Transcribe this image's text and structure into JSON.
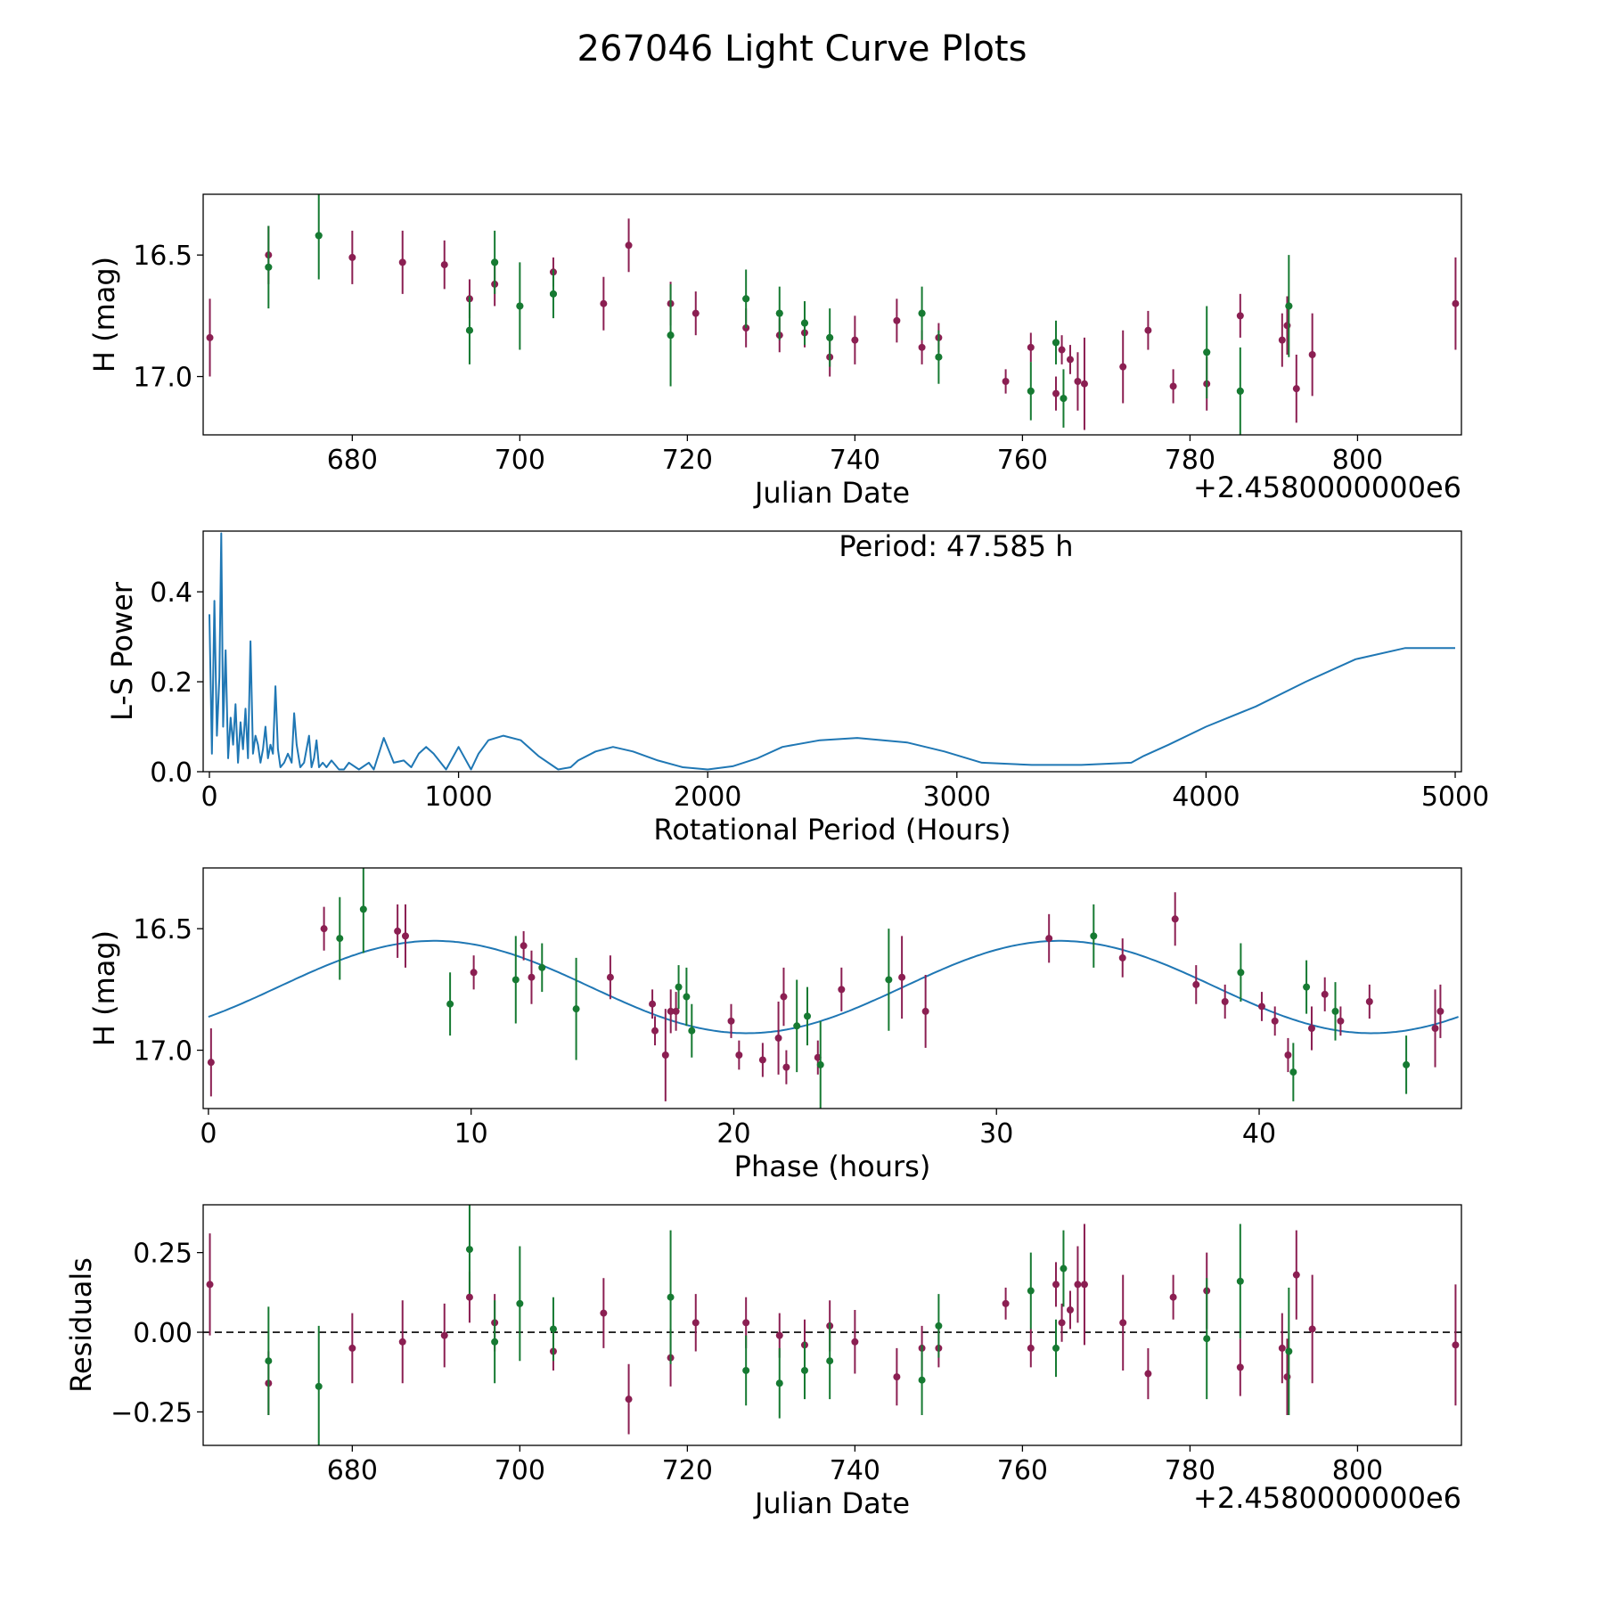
{
  "figure_title": "267046 Light Curve Plots",
  "colors": {
    "purple": "#8b1f52",
    "green": "#167a32",
    "blue": "#1f77b4",
    "black": "#000000"
  },
  "chart_data": [
    {
      "id": "lightcurve",
      "type": "scatter",
      "xlabel": "Julian Date",
      "ylabel": "H (mag)",
      "offset_label": "+2.4580000000e6",
      "xlim": [
        662.2,
        812.4
      ],
      "ylim": [
        17.24,
        16.25
      ],
      "xticks": [
        680,
        700,
        720,
        740,
        760,
        780,
        800
      ],
      "yticks": [
        17.0,
        16.5
      ],
      "ytick_labels": [
        "17.0",
        "16.5"
      ],
      "series": [
        {
          "name": "purple band",
          "color": "#8b1f52",
          "x": [
            663,
            670,
            680,
            686,
            691,
            694,
            697,
            704,
            710,
            713,
            718,
            721,
            727,
            731,
            734,
            737,
            740,
            745,
            748,
            750,
            758,
            761,
            764,
            764.7,
            765.7,
            766.6,
            767.4,
            772,
            775,
            778,
            782,
            786,
            791,
            791.6,
            792.7,
            794.6,
            811.7
          ],
          "y": [
            16.84,
            16.5,
            16.51,
            16.53,
            16.54,
            16.68,
            16.62,
            16.57,
            16.7,
            16.46,
            16.7,
            16.74,
            16.8,
            16.83,
            16.82,
            16.92,
            16.85,
            16.77,
            16.88,
            16.84,
            17.02,
            16.88,
            17.07,
            16.89,
            16.93,
            17.02,
            17.03,
            16.96,
            16.81,
            17.04,
            17.03,
            16.75,
            16.85,
            16.79,
            17.05,
            16.91,
            16.7
          ],
          "err": [
            0.16,
            0.12,
            0.11,
            0.13,
            0.1,
            0.08,
            0.09,
            0.06,
            0.11,
            0.11,
            0.09,
            0.09,
            0.08,
            0.07,
            0.06,
            0.08,
            0.1,
            0.09,
            0.07,
            0.06,
            0.05,
            0.06,
            0.07,
            0.06,
            0.06,
            0.12,
            0.19,
            0.15,
            0.08,
            0.07,
            0.11,
            0.09,
            0.11,
            0.12,
            0.14,
            0.17,
            0.19
          ]
        },
        {
          "name": "green band",
          "color": "#167a32",
          "x": [
            670,
            676,
            694,
            697,
            700,
            704,
            718,
            727,
            731,
            734,
            737,
            748,
            750,
            761,
            764,
            764.9,
            782,
            786,
            791.8
          ],
          "y": [
            16.55,
            16.42,
            16.81,
            16.53,
            16.71,
            16.66,
            16.83,
            16.68,
            16.74,
            16.78,
            16.84,
            16.74,
            16.92,
            17.06,
            16.86,
            17.09,
            16.9,
            17.06,
            16.71
          ]
        },
        {
          "name": "green band errors",
          "err": [
            0.17,
            0.18,
            0.14,
            0.13,
            0.18,
            0.1,
            0.21,
            0.12,
            0.11,
            0.09,
            0.12,
            0.11,
            0.11,
            0.12,
            0.09,
            0.12,
            0.19,
            0.18,
            0.21
          ]
        }
      ]
    },
    {
      "id": "periodogram",
      "type": "line",
      "xlabel": "Rotational Period (Hours)",
      "ylabel": "L-S Power",
      "annotation": "Period: 47.585 h",
      "xlim": [
        -25,
        5025
      ],
      "ylim": [
        0,
        0.535
      ],
      "xticks": [
        0,
        1000,
        2000,
        3000,
        4000,
        5000
      ],
      "yticks": [
        0.0,
        0.2,
        0.4
      ],
      "ytick_labels": [
        "0.0",
        "0.2",
        "0.4"
      ],
      "color": "#1f77b4",
      "x": [
        0,
        10,
        20,
        30,
        40,
        47.6,
        55,
        65,
        75,
        85,
        95,
        105,
        115,
        125,
        135,
        145,
        155,
        165,
        175,
        185,
        195,
        205,
        215,
        225,
        235,
        245,
        255,
        265,
        275,
        285,
        300,
        315,
        330,
        340,
        350,
        365,
        380,
        400,
        410,
        420,
        430,
        440,
        455,
        470,
        490,
        520,
        540,
        560,
        600,
        640,
        660,
        700,
        740,
        780,
        810,
        840,
        870,
        900,
        950,
        1000,
        1050,
        1080,
        1120,
        1180,
        1250,
        1320,
        1400,
        1450,
        1480,
        1550,
        1620,
        1700,
        1800,
        1900,
        2000,
        2100,
        2200,
        2300,
        2450,
        2600,
        2800,
        2950,
        3100,
        3300,
        3500,
        3700,
        3750,
        3850,
        4000,
        4200,
        4400,
        4600,
        4800,
        5000
      ],
      "y": [
        0.35,
        0.04,
        0.38,
        0.08,
        0.21,
        0.53,
        0.1,
        0.27,
        0.03,
        0.12,
        0.06,
        0.15,
        0.02,
        0.11,
        0.05,
        0.14,
        0.03,
        0.29,
        0.04,
        0.08,
        0.06,
        0.02,
        0.05,
        0.1,
        0.03,
        0.06,
        0.04,
        0.19,
        0.05,
        0.01,
        0.02,
        0.04,
        0.02,
        0.13,
        0.06,
        0.01,
        0.02,
        0.08,
        0.01,
        0.03,
        0.07,
        0.01,
        0.02,
        0.01,
        0.025,
        0.005,
        0.005,
        0.02,
        0.005,
        0.02,
        0.005,
        0.075,
        0.02,
        0.025,
        0.01,
        0.04,
        0.055,
        0.04,
        0.005,
        0.055,
        0.005,
        0.04,
        0.07,
        0.08,
        0.07,
        0.035,
        0.005,
        0.01,
        0.025,
        0.045,
        0.055,
        0.045,
        0.025,
        0.01,
        0.005,
        0.012,
        0.03,
        0.055,
        0.07,
        0.075,
        0.065,
        0.045,
        0.02,
        0.015,
        0.015,
        0.02,
        0.035,
        0.06,
        0.1,
        0.145,
        0.2,
        0.25,
        0.275,
        0.275
      ]
    },
    {
      "id": "phase",
      "type": "scatter",
      "xlabel": "Phase (hours)",
      "ylabel": "H (mag)",
      "xlim": [
        -0.2,
        47.7
      ],
      "ylim": [
        17.24,
        16.25
      ],
      "xticks": [
        0,
        10,
        20,
        30,
        40
      ],
      "yticks": [
        17.0,
        16.5
      ],
      "ytick_labels": [
        "17.0",
        "16.5"
      ],
      "model": {
        "period": 47.585,
        "mean": 16.74,
        "amplitude": 0.19,
        "peak_phase": 20.5
      },
      "series": [
        {
          "name": "purple band",
          "color": "#8b1f52",
          "x": [
            0.1,
            4.4,
            7.2,
            7.5,
            10.1,
            12.0,
            12.3,
            15.3,
            16.9,
            17.0,
            17.4,
            17.6,
            17.8,
            19.9,
            20.2,
            21.1,
            21.7,
            21.9,
            22.0,
            23.2,
            24.1,
            26.4,
            27.3,
            32.0,
            34.8,
            36.8,
            37.6,
            38.7,
            40.1,
            40.6,
            41.1,
            42.0,
            42.5,
            43.1,
            44.2,
            46.7,
            46.9
          ],
          "y": [
            17.05,
            16.5,
            16.51,
            16.53,
            16.68,
            16.57,
            16.7,
            16.7,
            16.81,
            16.92,
            17.02,
            16.84,
            16.84,
            16.88,
            17.02,
            17.04,
            16.95,
            16.78,
            17.07,
            17.03,
            16.75,
            16.7,
            16.84,
            16.54,
            16.62,
            16.46,
            16.73,
            16.8,
            16.82,
            16.88,
            17.02,
            16.91,
            16.77,
            16.88,
            16.8,
            16.91,
            16.84
          ],
          "err": [
            0.14,
            0.09,
            0.11,
            0.13,
            0.07,
            0.06,
            0.11,
            0.09,
            0.06,
            0.06,
            0.19,
            0.09,
            0.08,
            0.07,
            0.06,
            0.07,
            0.15,
            0.12,
            0.07,
            0.07,
            0.09,
            0.17,
            0.15,
            0.1,
            0.08,
            0.11,
            0.08,
            0.07,
            0.06,
            0.06,
            0.07,
            0.09,
            0.07,
            0.06,
            0.07,
            0.16,
            0.11
          ]
        },
        {
          "name": "green band",
          "color": "#167a32",
          "x": [
            5.0,
            5.9,
            9.2,
            11.7,
            12.7,
            14.0,
            17.9,
            18.2,
            18.4,
            22.4,
            22.8,
            23.3,
            25.9,
            33.7,
            39.3,
            41.3,
            41.8,
            42.9,
            45.6
          ],
          "y": [
            16.54,
            16.42,
            16.81,
            16.71,
            16.66,
            16.83,
            16.74,
            16.78,
            16.92,
            16.9,
            16.86,
            17.06,
            16.71,
            16.53,
            16.68,
            17.09,
            16.74,
            16.84,
            17.06
          ],
          "err": [
            0.17,
            0.18,
            0.13,
            0.18,
            0.1,
            0.21,
            0.09,
            0.12,
            0.11,
            0.19,
            0.12,
            0.18,
            0.21,
            0.13,
            0.12,
            0.12,
            0.11,
            0.12,
            0.12
          ]
        }
      ]
    },
    {
      "id": "residuals",
      "type": "scatter",
      "xlabel": "Julian Date",
      "ylabel": "Residuals",
      "offset_label": "+2.4580000000e6",
      "xlim": [
        662.2,
        812.4
      ],
      "ylim": [
        -0.355,
        0.4
      ],
      "xticks": [
        680,
        700,
        720,
        740,
        760,
        780,
        800
      ],
      "yticks": [
        0.25,
        0.0,
        -0.25
      ],
      "ytick_labels": [
        "0.25",
        "0.00",
        "−0.25"
      ],
      "zero_line": true,
      "series": [
        {
          "name": "purple band",
          "color": "#8b1f52",
          "x": [
            663,
            670,
            680,
            686,
            691,
            694,
            697,
            704,
            710,
            713,
            718,
            721,
            727,
            731,
            734,
            737,
            740,
            745,
            748,
            750,
            758,
            761,
            764,
            764.7,
            765.7,
            766.6,
            767.4,
            772,
            775,
            778,
            782,
            786,
            791,
            791.6,
            792.7,
            794.6,
            811.7
          ],
          "y": [
            0.15,
            -0.16,
            -0.05,
            -0.03,
            -0.01,
            0.11,
            0.03,
            -0.06,
            0.06,
            -0.21,
            -0.08,
            0.03,
            0.03,
            -0.01,
            -0.04,
            0.02,
            -0.03,
            -0.14,
            -0.05,
            -0.05,
            0.09,
            -0.05,
            0.15,
            0.03,
            0.07,
            0.15,
            0.15,
            0.03,
            -0.13,
            0.11,
            0.13,
            -0.11,
            -0.05,
            -0.14,
            0.18,
            0.01,
            -0.04
          ],
          "err": [
            0.16,
            0.1,
            0.11,
            0.13,
            0.1,
            0.08,
            0.09,
            0.06,
            0.11,
            0.11,
            0.09,
            0.09,
            0.08,
            0.07,
            0.08,
            0.08,
            0.1,
            0.09,
            0.07,
            0.06,
            0.05,
            0.06,
            0.07,
            0.06,
            0.06,
            0.12,
            0.19,
            0.15,
            0.08,
            0.07,
            0.12,
            0.09,
            0.11,
            0.12,
            0.14,
            0.17,
            0.19
          ]
        },
        {
          "name": "green band",
          "color": "#167a32",
          "x": [
            670,
            676,
            694,
            697,
            700,
            704,
            718,
            727,
            731,
            734,
            737,
            748,
            750,
            761,
            764,
            764.9,
            782,
            786,
            791.8
          ],
          "y": [
            -0.09,
            -0.17,
            0.26,
            -0.03,
            0.09,
            0.01,
            0.11,
            -0.12,
            -0.16,
            -0.12,
            -0.09,
            -0.15,
            0.02,
            0.13,
            -0.05,
            0.2,
            -0.02,
            0.16,
            -0.06
          ],
          "err": [
            0.17,
            0.19,
            0.14,
            0.13,
            0.18,
            0.1,
            0.21,
            0.11,
            0.11,
            0.09,
            0.12,
            0.11,
            0.1,
            0.12,
            0.09,
            0.12,
            0.19,
            0.18,
            0.2
          ]
        }
      ]
    }
  ]
}
